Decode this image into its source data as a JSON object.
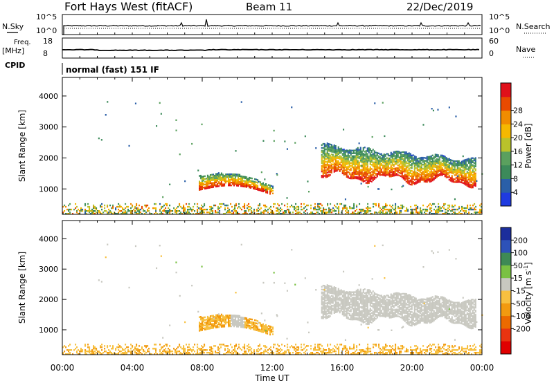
{
  "header": {
    "station": "Fort Hays West (fitACF)",
    "beam": "Beam 11",
    "date": "22/Dec/2019"
  },
  "noise_panel": {
    "left_label": "N.Sky",
    "left_ticks": [
      "10^5",
      "10^0"
    ],
    "right_label": "N.Search",
    "right_ticks": [
      "10^5",
      "10^0"
    ]
  },
  "freq_panel": {
    "left_label_1": "Freq.",
    "left_label_2": "[MHz]",
    "left_ticks": [
      "18",
      "8"
    ],
    "right_label": "Nave",
    "right_ticks": [
      "60",
      "0"
    ],
    "cpid_label": "CPID",
    "cpid_value": "normal (fast) 151 IF"
  },
  "colors": {
    "power_scale": [
      "#1f3be0",
      "#2a5fa8",
      "#3c8a5a",
      "#5aa05e",
      "#b9c22b",
      "#f5b800",
      "#f08c00",
      "#e84a00",
      "#e0101a"
    ],
    "velocity_scale": [
      "#1c2e9c",
      "#2d52b8",
      "#3e8a55",
      "#7ac143",
      "#c8c8c0",
      "#f7c040",
      "#f29a10",
      "#ec6a00",
      "#e83410",
      "#e00000"
    ]
  },
  "chart_data": [
    {
      "type": "heatmap",
      "parameter": "Power",
      "xlabel": "Time UT",
      "ylabel": "Slant Range [km]",
      "x_ticks": [
        "00:00",
        "04:00",
        "08:00",
        "12:00",
        "16:00",
        "20:00",
        "00:00"
      ],
      "xlim_hours": [
        0,
        24
      ],
      "y_ticks": [
        1000,
        2000,
        3000,
        4000
      ],
      "ylim": [
        180,
        4600
      ],
      "colorbar": {
        "label": "Power [dB]",
        "ticks": [
          "4",
          "8",
          "12",
          "16",
          "20",
          "24",
          "28"
        ],
        "range": [
          0,
          32
        ]
      },
      "features": [
        {
          "t_start": 7.8,
          "t_end": 12.0,
          "range_min": 700,
          "range_max": 1500,
          "peak_db": 30
        },
        {
          "t_start": 14.8,
          "t_end": 23.6,
          "range_min": 1100,
          "range_max": 2600,
          "peak_db": 30
        },
        {
          "t_start": 0.0,
          "t_end": 24.0,
          "range_min": 180,
          "range_max": 500,
          "peak_db": 26
        }
      ]
    },
    {
      "type": "heatmap",
      "parameter": "Velocity",
      "xlabel": "Time UT",
      "ylabel": "Slant Range [km]",
      "x_ticks": [
        "00:00",
        "04:00",
        "08:00",
        "12:00",
        "16:00",
        "20:00",
        "00:00"
      ],
      "xlim_hours": [
        0,
        24
      ],
      "y_ticks": [
        1000,
        2000,
        3000,
        4000
      ],
      "ylim": [
        180,
        4600
      ],
      "colorbar": {
        "label": "Velocity [m s^-1]",
        "ticks": [
          "200",
          "100",
          "50",
          "15",
          "-15",
          "-50",
          "-100",
          "-200"
        ],
        "range": [
          -250,
          250
        ]
      },
      "features": [
        {
          "t_start": 7.8,
          "t_end": 12.0,
          "range_min": 700,
          "range_max": 1500,
          "velocity": -60
        },
        {
          "t_start": 14.8,
          "t_end": 23.6,
          "range_min": 1100,
          "range_max": 2600,
          "velocity": 0
        },
        {
          "t_start": 0.0,
          "t_end": 24.0,
          "range_min": 180,
          "range_max": 500,
          "velocity": -40
        }
      ]
    }
  ]
}
